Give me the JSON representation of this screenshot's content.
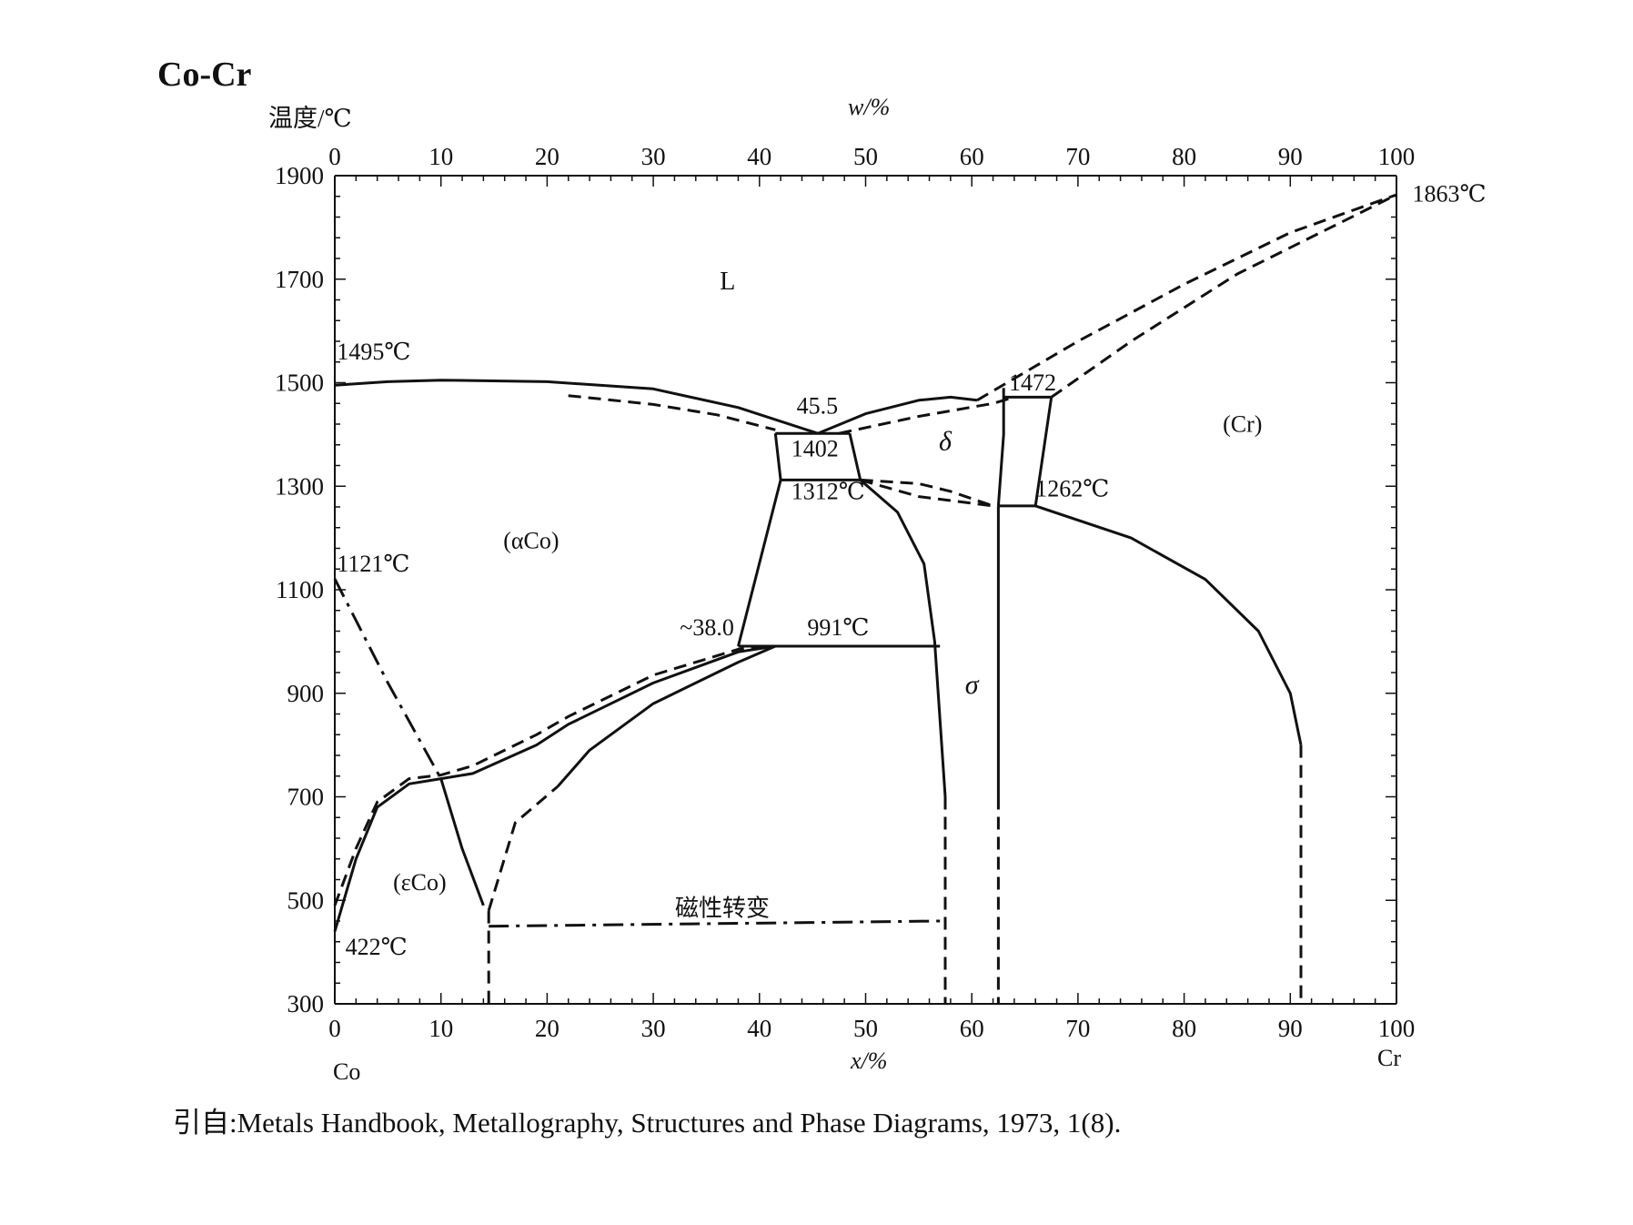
{
  "title": "Co-Cr",
  "source": "引自:Metals Handbook, Metallography, Structures and Phase Diagrams, 1973, 1(8).",
  "colors": {
    "ink": "#111111",
    "background": "#ffffff"
  },
  "chart_data": {
    "type": "phase-diagram",
    "title": "Co-Cr",
    "ylabel": "温度/℃",
    "xlabel_bottom": "x/%",
    "xlabel_top": "w/%",
    "left_component": "Co",
    "right_component": "Cr",
    "ylim": [
      300,
      1900
    ],
    "xlim": [
      0,
      100
    ],
    "y_ticks": [
      300,
      500,
      700,
      900,
      1100,
      1300,
      1500,
      1700,
      1900
    ],
    "x_ticks_bottom": [
      0,
      10,
      20,
      30,
      40,
      50,
      60,
      70,
      80,
      90,
      100
    ],
    "x_ticks_top": [
      0,
      10,
      20,
      30,
      40,
      50,
      60,
      70,
      80,
      90,
      100
    ],
    "phase_labels": [
      {
        "text": "L",
        "x": 37,
        "temp": 1680
      },
      {
        "text": "(αCo)",
        "x": 18.5,
        "temp": 1180
      },
      {
        "text": "(εCo)",
        "x": 8,
        "temp": 520
      },
      {
        "text": "δ",
        "x": 57.5,
        "temp": 1370
      },
      {
        "text": "σ",
        "x": 60,
        "temp": 900
      },
      {
        "text": "(Cr)",
        "x": 85.5,
        "temp": 1405
      },
      {
        "text": "磁性转变",
        "x": 36.5,
        "temp": 470
      }
    ],
    "annotations": [
      {
        "text": "1495℃",
        "x": 0.2,
        "temp": 1545
      },
      {
        "text": "1863℃",
        "x": 101.5,
        "temp": 1850
      },
      {
        "text": "45.5",
        "x": 43.5,
        "temp": 1440
      },
      {
        "text": "1402",
        "x": 43,
        "temp": 1358
      },
      {
        "text": "1472",
        "x": 63.5,
        "temp": 1485
      },
      {
        "text": "1312℃",
        "x": 43,
        "temp": 1275
      },
      {
        "text": "1262℃",
        "x": 66,
        "temp": 1280
      },
      {
        "text": "1121℃",
        "x": 0.2,
        "temp": 1135
      },
      {
        "text": "~38.0",
        "x": 32.5,
        "temp": 1012
      },
      {
        "text": "991℃",
        "x": 44.5,
        "temp": 1012
      },
      {
        "text": "422℃",
        "x": 1,
        "temp": 395
      }
    ],
    "lines": [
      {
        "name": "liquidus-left",
        "style": "solid",
        "points": [
          [
            0,
            1495
          ],
          [
            5,
            1502
          ],
          [
            10,
            1505
          ],
          [
            20,
            1502
          ],
          [
            30,
            1488
          ],
          [
            38,
            1452
          ],
          [
            45.5,
            1402
          ]
        ]
      },
      {
        "name": "liquidus-right",
        "style": "solid",
        "points": [
          [
            45.5,
            1402
          ],
          [
            50,
            1440
          ],
          [
            55,
            1466
          ],
          [
            58,
            1472
          ],
          [
            60.5,
            1466
          ]
        ]
      },
      {
        "name": "solidus-alpha-dashed",
        "style": "dashed",
        "points": [
          [
            22,
            1475
          ],
          [
            30,
            1458
          ],
          [
            36,
            1438
          ],
          [
            41.5,
            1409
          ]
        ]
      },
      {
        "name": "delta-liquidus-dashed",
        "style": "dashed",
        "points": [
          [
            47.5,
            1402
          ],
          [
            55,
            1435
          ],
          [
            62,
            1460
          ],
          [
            64,
            1472
          ]
        ]
      },
      {
        "name": "delta-left-1402-1312",
        "style": "solid",
        "points": [
          [
            41.5,
            1402
          ],
          [
            42,
            1312
          ]
        ]
      },
      {
        "name": "delta-right-1402-1312",
        "style": "solid",
        "points": [
          [
            48.5,
            1402
          ],
          [
            49.5,
            1312
          ]
        ]
      },
      {
        "name": "eutectic-1402",
        "style": "solid",
        "points": [
          [
            41.5,
            1402
          ],
          [
            48.5,
            1402
          ]
        ]
      },
      {
        "name": "peritectoid-1312",
        "style": "solid",
        "points": [
          [
            42,
            1312
          ],
          [
            49.5,
            1312
          ]
        ]
      },
      {
        "name": "alpha-sigma-boundary",
        "style": "solid",
        "points": [
          [
            42,
            1312
          ],
          [
            38,
            991
          ]
        ]
      },
      {
        "name": "sigma-left-boundary",
        "style": "solid",
        "points": [
          [
            49.5,
            1312
          ],
          [
            53,
            1250
          ],
          [
            55.5,
            1150
          ],
          [
            56.5,
            1000
          ],
          [
            57,
            850
          ],
          [
            57.5,
            700
          ]
        ]
      },
      {
        "name": "sigma-left-dashed",
        "style": "dashed",
        "points": [
          [
            57.5,
            700
          ],
          [
            57.5,
            300
          ]
        ]
      },
      {
        "name": "eutectoid-991",
        "style": "solid",
        "points": [
          [
            38,
            991
          ],
          [
            57,
            991
          ]
        ]
      },
      {
        "name": "delta-sigma-dashed",
        "style": "dashed",
        "points": [
          [
            49.5,
            1312
          ],
          [
            55,
            1305
          ],
          [
            58,
            1290
          ],
          [
            62,
            1262
          ]
        ]
      },
      {
        "name": "delta-sigma-dashed-2",
        "style": "dashed",
        "points": [
          [
            49.5,
            1312
          ],
          [
            55,
            1280
          ],
          [
            62,
            1262
          ]
        ]
      },
      {
        "name": "delta-right-boundary",
        "style": "solid",
        "points": [
          [
            63,
            1490
          ],
          [
            63,
            1400
          ],
          [
            62.5,
            1262
          ]
        ]
      },
      {
        "name": "sigma-right-boundary",
        "style": "solid",
        "points": [
          [
            62.5,
            1262
          ],
          [
            62.5,
            700
          ]
        ]
      },
      {
        "name": "sigma-right-dashed",
        "style": "dashed",
        "points": [
          [
            62.5,
            700
          ],
          [
            62.5,
            300
          ]
        ]
      },
      {
        "name": "peritectic-1472",
        "style": "solid",
        "points": [
          [
            63,
            1472
          ],
          [
            67.5,
            1472
          ]
        ]
      },
      {
        "name": "cr-solidus-left",
        "style": "solid",
        "points": [
          [
            67.5,
            1472
          ],
          [
            66,
            1262
          ]
        ]
      },
      {
        "name": "eutectoid-1262",
        "style": "solid",
        "points": [
          [
            62.5,
            1262
          ],
          [
            66,
            1262
          ]
        ]
      },
      {
        "name": "cr-solvus",
        "style": "solid",
        "points": [
          [
            66,
            1262
          ],
          [
            75,
            1200
          ],
          [
            82,
            1120
          ],
          [
            87,
            1020
          ],
          [
            90,
            900
          ],
          [
            91,
            800
          ]
        ]
      },
      {
        "name": "cr-solvus-dashed",
        "style": "dashed",
        "points": [
          [
            91,
            800
          ],
          [
            91,
            300
          ]
        ]
      },
      {
        "name": "cr-liquidus-dashed",
        "style": "dashed",
        "points": [
          [
            60.5,
            1466
          ],
          [
            70,
            1580
          ],
          [
            80,
            1690
          ],
          [
            90,
            1790
          ],
          [
            100,
            1863
          ]
        ]
      },
      {
        "name": "cr-solidus-dashed",
        "style": "dashed",
        "points": [
          [
            67.5,
            1472
          ],
          [
            75,
            1580
          ],
          [
            85,
            1710
          ],
          [
            100,
            1863
          ]
        ]
      },
      {
        "name": "alpha-epsilon-dashdot",
        "style": "dashdot",
        "points": [
          [
            0,
            1121
          ],
          [
            5,
            920
          ],
          [
            10,
            735
          ]
        ]
      },
      {
        "name": "alpha-epsilon-solid",
        "style": "solid",
        "points": [
          [
            10,
            735
          ],
          [
            12,
            600
          ],
          [
            14,
            490
          ]
        ]
      },
      {
        "name": "epsilon-upper-solid",
        "style": "solid",
        "points": [
          [
            0,
            440
          ],
          [
            2,
            580
          ],
          [
            4,
            680
          ],
          [
            7,
            725
          ],
          [
            10,
            735
          ],
          [
            13,
            745
          ],
          [
            19,
            800
          ],
          [
            22,
            840
          ],
          [
            30,
            920
          ],
          [
            38,
            980
          ],
          [
            41.5,
            991
          ]
        ]
      },
      {
        "name": "epsilon-upper-dashed",
        "style": "dashed",
        "points": [
          [
            0,
            490
          ],
          [
            2,
            600
          ],
          [
            4,
            690
          ],
          [
            7,
            735
          ],
          [
            10,
            742
          ],
          [
            13,
            760
          ],
          [
            19,
            820
          ],
          [
            22,
            855
          ],
          [
            30,
            935
          ],
          [
            38,
            985
          ],
          [
            41,
            991
          ]
        ]
      },
      {
        "name": "sigma-epsilon-dashed",
        "style": "dashed",
        "points": [
          [
            14.5,
            480
          ],
          [
            17,
            650
          ],
          [
            21,
            720
          ]
        ]
      },
      {
        "name": "sigma-epsilon-solid",
        "style": "solid",
        "points": [
          [
            21,
            720
          ],
          [
            24,
            790
          ],
          [
            30,
            880
          ],
          [
            38,
            960
          ],
          [
            41.5,
            991
          ]
        ]
      },
      {
        "name": "epsilon-right-dashed",
        "style": "dashed",
        "points": [
          [
            14.5,
            480
          ],
          [
            14.5,
            300
          ]
        ]
      },
      {
        "name": "magnetic-transition",
        "style": "dashdot",
        "points": [
          [
            14.5,
            450
          ],
          [
            57,
            460
          ]
        ]
      }
    ]
  }
}
